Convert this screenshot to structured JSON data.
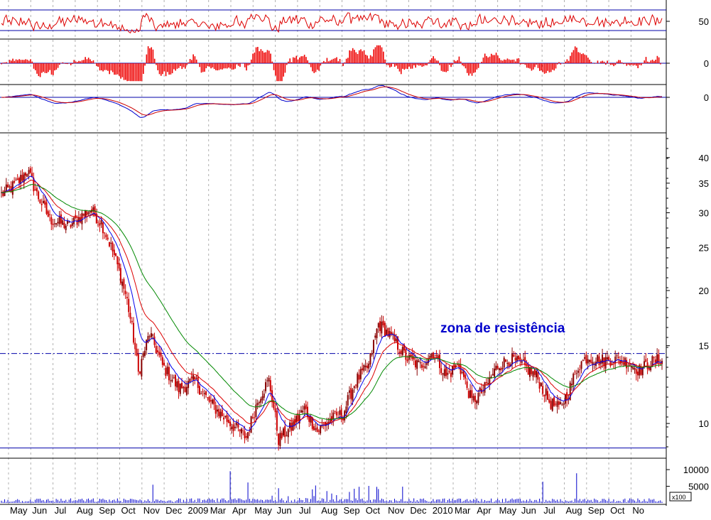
{
  "chart_data": {
    "type": "line",
    "panels": [
      {
        "name": "oscillator-1",
        "y_tick_labels": [
          "50"
        ],
        "reference_levels": [
          30,
          70
        ],
        "line_color": "#dd0000",
        "guide_color": "#0000aa"
      },
      {
        "name": "momentum-histogram",
        "y_tick_labels": [
          "0"
        ],
        "bar_color": "#ee0000"
      },
      {
        "name": "macd",
        "y_tick_labels": [
          "0"
        ],
        "line_colors": [
          "#0000cc",
          "#cc0000"
        ]
      },
      {
        "name": "price",
        "scale": "log",
        "ylim": [
          8.5,
          45
        ],
        "y_tick_labels": [
          "40",
          "35",
          "30",
          "25",
          "20",
          "15",
          "10"
        ],
        "y_ticks": [
          40,
          35,
          30,
          25,
          20,
          15,
          10
        ],
        "resistance_level": 14.4,
        "support_level": 8.8,
        "annotation": "zona de resistência",
        "annotation_color": "#0000cc",
        "candle_color": "#cc0000",
        "ma_colors": {
          "fast": "#0000ee",
          "mid": "#dd0000",
          "slow": "#008800"
        },
        "close_anchors": [
          {
            "t": 0,
            "v": 33
          },
          {
            "t": 10,
            "v": 35
          },
          {
            "t": 16,
            "v": 37.5
          },
          {
            "t": 22,
            "v": 33
          },
          {
            "t": 30,
            "v": 29
          },
          {
            "t": 42,
            "v": 28
          },
          {
            "t": 55,
            "v": 30.5
          },
          {
            "t": 62,
            "v": 28.5
          },
          {
            "t": 70,
            "v": 24
          },
          {
            "t": 78,
            "v": 19
          },
          {
            "t": 85,
            "v": 13
          },
          {
            "t": 92,
            "v": 16
          },
          {
            "t": 100,
            "v": 13.5
          },
          {
            "t": 110,
            "v": 12
          },
          {
            "t": 120,
            "v": 12.5
          },
          {
            "t": 128,
            "v": 11.3
          },
          {
            "t": 136,
            "v": 10.5
          },
          {
            "t": 145,
            "v": 9.8
          },
          {
            "t": 152,
            "v": 9.3
          },
          {
            "t": 160,
            "v": 11.5
          },
          {
            "t": 166,
            "v": 12.5
          },
          {
            "t": 172,
            "v": 9.2
          },
          {
            "t": 180,
            "v": 9.8
          },
          {
            "t": 188,
            "v": 10.8
          },
          {
            "t": 196,
            "v": 9.6
          },
          {
            "t": 204,
            "v": 10.2
          },
          {
            "t": 212,
            "v": 10.5
          },
          {
            "t": 220,
            "v": 12.5
          },
          {
            "t": 228,
            "v": 13.5
          },
          {
            "t": 234,
            "v": 16.8
          },
          {
            "t": 240,
            "v": 16
          },
          {
            "t": 246,
            "v": 15
          },
          {
            "t": 252,
            "v": 14
          },
          {
            "t": 260,
            "v": 13.5
          },
          {
            "t": 268,
            "v": 14.5
          },
          {
            "t": 276,
            "v": 12.8
          },
          {
            "t": 284,
            "v": 13.6
          },
          {
            "t": 292,
            "v": 11.2
          },
          {
            "t": 300,
            "v": 12
          },
          {
            "t": 308,
            "v": 13.5
          },
          {
            "t": 316,
            "v": 14
          },
          {
            "t": 324,
            "v": 13.5
          },
          {
            "t": 332,
            "v": 12.8
          },
          {
            "t": 340,
            "v": 11.2
          },
          {
            "t": 346,
            "v": 10.8
          },
          {
            "t": 352,
            "v": 11.8
          },
          {
            "t": 358,
            "v": 13.5
          },
          {
            "t": 364,
            "v": 14.2
          },
          {
            "t": 372,
            "v": 13.9
          },
          {
            "t": 380,
            "v": 14
          },
          {
            "t": 388,
            "v": 13.8
          },
          {
            "t": 396,
            "v": 13.2
          },
          {
            "t": 404,
            "v": 13.8
          },
          {
            "t": 410,
            "v": 14
          }
        ]
      },
      {
        "name": "volume",
        "scale_label": "x100",
        "y_tick_labels": [
          "10000",
          "5000"
        ],
        "y_ticks": [
          10000,
          5000
        ],
        "bar_color": "#0000cc"
      }
    ],
    "x_tick_labels": [
      "May",
      "Jun",
      "Jul",
      "Aug",
      "Sep",
      "Oct",
      "Nov",
      "Dec",
      "2009",
      "Mar",
      "Apr",
      "May",
      "Jun",
      "Jul",
      "Aug",
      "Sep",
      "Oct",
      "Nov",
      "Dec",
      "2010",
      "Mar",
      "Apr",
      "May",
      "Jun",
      "Jul",
      "Aug",
      "Sep",
      "Oct",
      "No"
    ],
    "background_color": "#ffffff",
    "grid_color": "#b0b0b0"
  }
}
